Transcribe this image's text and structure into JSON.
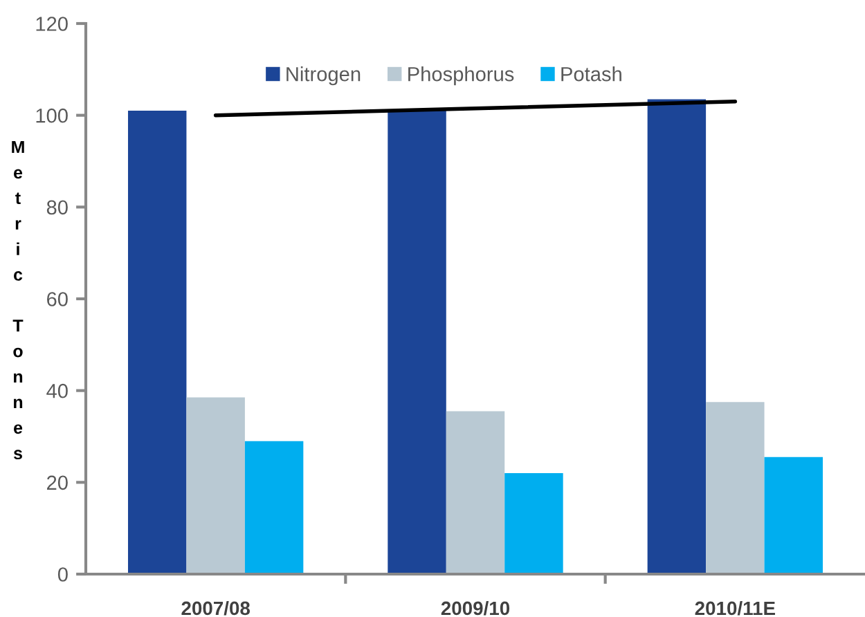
{
  "chart_data": {
    "type": "bar",
    "ylabel": "Metric Tonnes",
    "categories": [
      "2007/08",
      "2009/10",
      "2010/11E"
    ],
    "series": [
      {
        "name": "Nitrogen",
        "color": "#1c4597",
        "values": [
          101,
          101,
          103.5
        ]
      },
      {
        "name": "Phosphorus",
        "color": "#b9c9d3",
        "values": [
          38.5,
          35.5,
          37.5
        ]
      },
      {
        "name": "Potash",
        "color": "#00aeef",
        "values": [
          29,
          22,
          25.5
        ]
      },
      {
        "type": "line",
        "color": "#000000",
        "values": [
          100,
          101.5,
          103
        ]
      }
    ],
    "ylim": [
      0,
      120
    ],
    "yticks": [
      0,
      20,
      40,
      60,
      80,
      100,
      120
    ],
    "legend": "top"
  }
}
